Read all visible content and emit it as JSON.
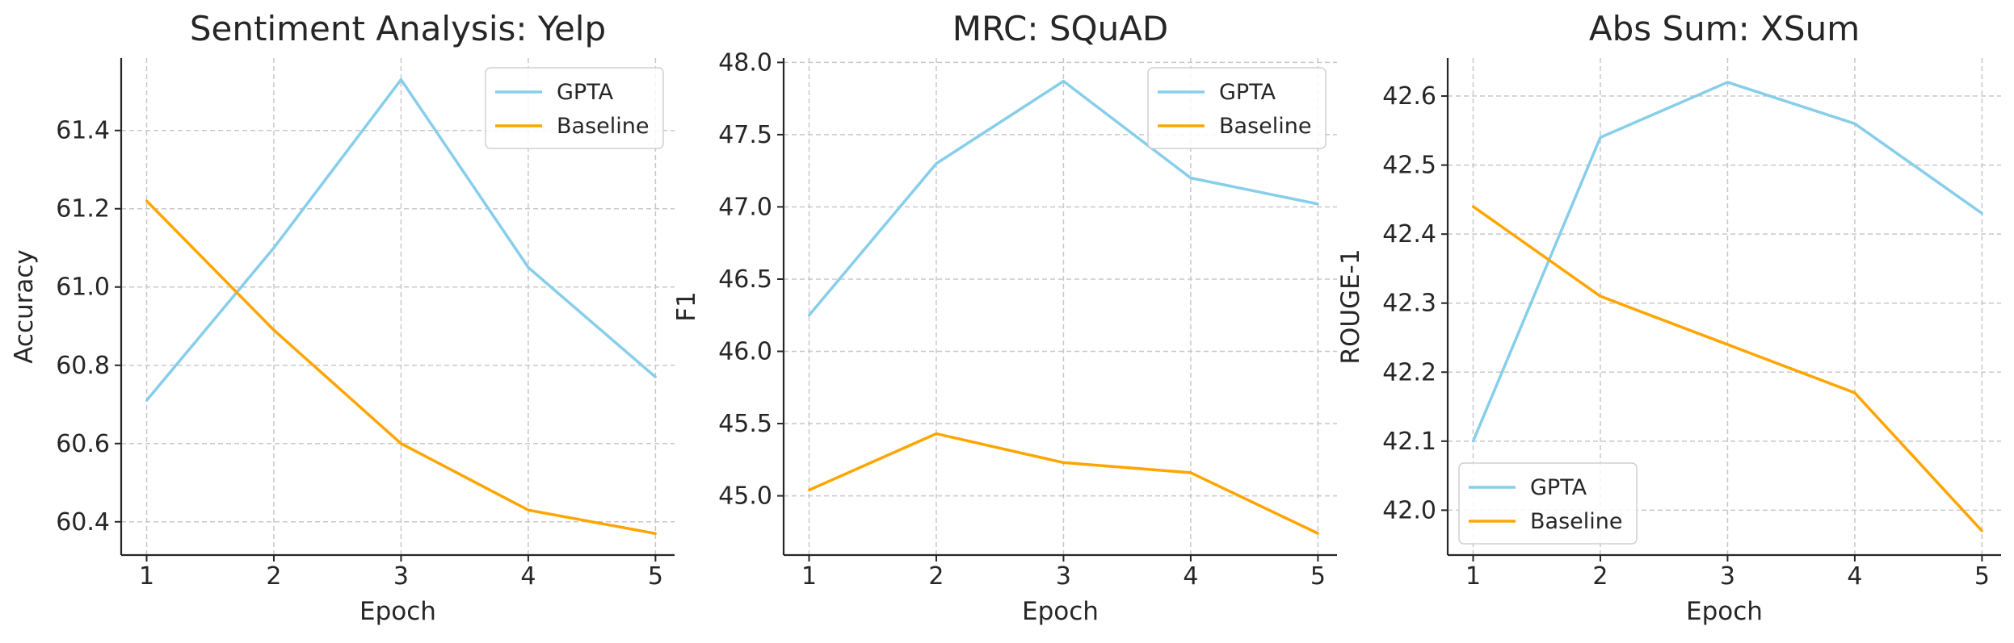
{
  "chart_data": [
    {
      "type": "line",
      "title": "Sentiment Analysis: Yelp",
      "xlabel": "Epoch",
      "ylabel": "Accuracy",
      "x": [
        1,
        2,
        3,
        4,
        5
      ],
      "xticks": [
        "1",
        "2",
        "3",
        "4",
        "5"
      ],
      "xlim": [
        0.8,
        5.15
      ],
      "ylim": [
        60.315,
        61.585
      ],
      "yticks": [
        "60.4",
        "60.6",
        "60.8",
        "61.0",
        "61.2",
        "61.4"
      ],
      "grid": true,
      "legend_position": "top-right",
      "series": [
        {
          "name": "GPTA",
          "color": "#87CEEB",
          "values": [
            60.71,
            61.1,
            61.53,
            61.05,
            60.77
          ]
        },
        {
          "name": "Baseline",
          "color": "#FFA500",
          "values": [
            61.22,
            60.89,
            60.6,
            60.43,
            60.37
          ]
        }
      ]
    },
    {
      "type": "line",
      "title": "MRC: SQuAD",
      "xlabel": "Epoch",
      "ylabel": "F1",
      "x": [
        1,
        2,
        3,
        4,
        5
      ],
      "xticks": [
        "1",
        "2",
        "3",
        "4",
        "5"
      ],
      "xlim": [
        0.8,
        5.15
      ],
      "ylim": [
        44.59,
        48.03
      ],
      "yticks": [
        "45.0",
        "45.5",
        "46.0",
        "46.5",
        "47.0",
        "47.5",
        "48.0"
      ],
      "grid": true,
      "legend_position": "top-right",
      "series": [
        {
          "name": "GPTA",
          "color": "#87CEEB",
          "values": [
            46.25,
            47.3,
            47.87,
            47.2,
            47.02
          ]
        },
        {
          "name": "Baseline",
          "color": "#FFA500",
          "values": [
            45.04,
            45.43,
            45.23,
            45.16,
            44.74
          ]
        }
      ]
    },
    {
      "type": "line",
      "title": "Abs Sum: XSum",
      "xlabel": "Epoch",
      "ylabel": "ROUGE-1",
      "x": [
        1,
        2,
        3,
        4,
        5
      ],
      "xticks": [
        "1",
        "2",
        "3",
        "4",
        "5"
      ],
      "xlim": [
        0.8,
        5.15
      ],
      "ylim": [
        41.935,
        42.655
      ],
      "yticks": [
        "42.0",
        "42.1",
        "42.2",
        "42.3",
        "42.4",
        "42.5",
        "42.6"
      ],
      "grid": true,
      "legend_position": "bottom-left",
      "series": [
        {
          "name": "GPTA",
          "color": "#87CEEB",
          "values": [
            42.1,
            42.54,
            42.62,
            42.56,
            42.43
          ]
        },
        {
          "name": "Baseline",
          "color": "#FFA500",
          "values": [
            42.44,
            42.31,
            42.24,
            42.17,
            41.97
          ]
        }
      ]
    }
  ]
}
